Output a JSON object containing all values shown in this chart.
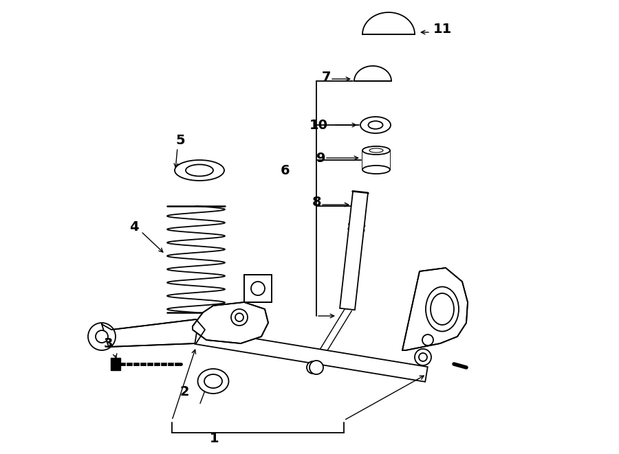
{
  "bg_color": "#ffffff",
  "line_color": "#000000",
  "fig_width": 9.0,
  "fig_height": 6.61,
  "dpi": 100,
  "xlim": [
    0,
    900
  ],
  "ylim": [
    0,
    661
  ]
}
